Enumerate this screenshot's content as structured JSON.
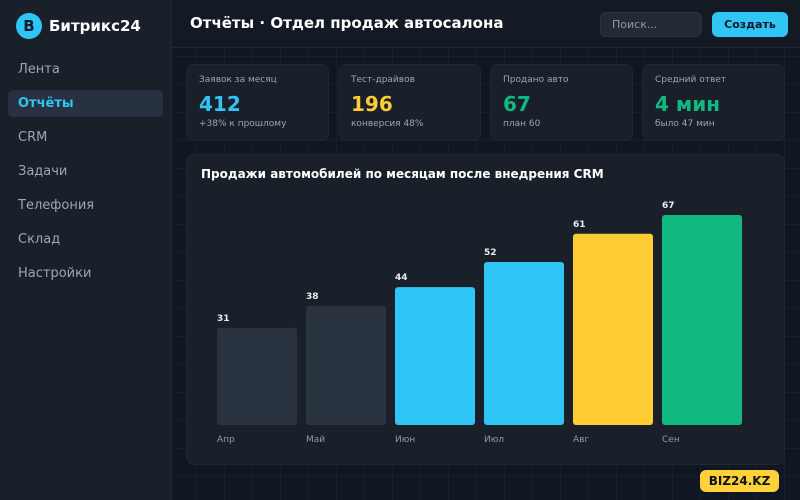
{
  "brand": {
    "logo_letter": "B",
    "name": "Битрикс24"
  },
  "sidebar": {
    "items": [
      {
        "label": "Лента",
        "active": false
      },
      {
        "label": "Отчёты",
        "active": true
      },
      {
        "label": "CRM",
        "active": false
      },
      {
        "label": "Задачи",
        "active": false
      },
      {
        "label": "Телефония",
        "active": false
      },
      {
        "label": "Склад",
        "active": false
      },
      {
        "label": "Настройки",
        "active": false
      }
    ]
  },
  "header": {
    "title": "Отчёты · Отдел продаж автосалона",
    "search_placeholder": "Поиск...",
    "create_label": "Создать"
  },
  "kpis": [
    {
      "label": "Заявок за месяц",
      "value": "412",
      "note": "+38% к прошлому",
      "color": "#2fc6f6"
    },
    {
      "label": "Тест-драйвов",
      "value": "196",
      "note": "конверсия 48%",
      "color": "#ffcc33"
    },
    {
      "label": "Продано авто",
      "value": "67",
      "note": "план 60",
      "color": "#11b981"
    },
    {
      "label": "Средний ответ",
      "value": "4 мин",
      "note": "было 47 мин",
      "color": "#11b981"
    }
  ],
  "chart_data": {
    "type": "bar",
    "title": "Продажи автомобилей по месяцам после внедрения CRM",
    "categories": [
      "Апр",
      "Май",
      "Июн",
      "Июл",
      "Авг",
      "Сен"
    ],
    "values": [
      31,
      38,
      44,
      52,
      61,
      67
    ],
    "colors": [
      "#2a3441",
      "#2a3441",
      "#2fc6f6",
      "#2fc6f6",
      "#ffcc33",
      "#11b981"
    ],
    "xlabel": "",
    "ylabel": "",
    "ylim": [
      0,
      67
    ],
    "grid": false,
    "legend": "none"
  },
  "watermark": "BIZ24.KZ"
}
